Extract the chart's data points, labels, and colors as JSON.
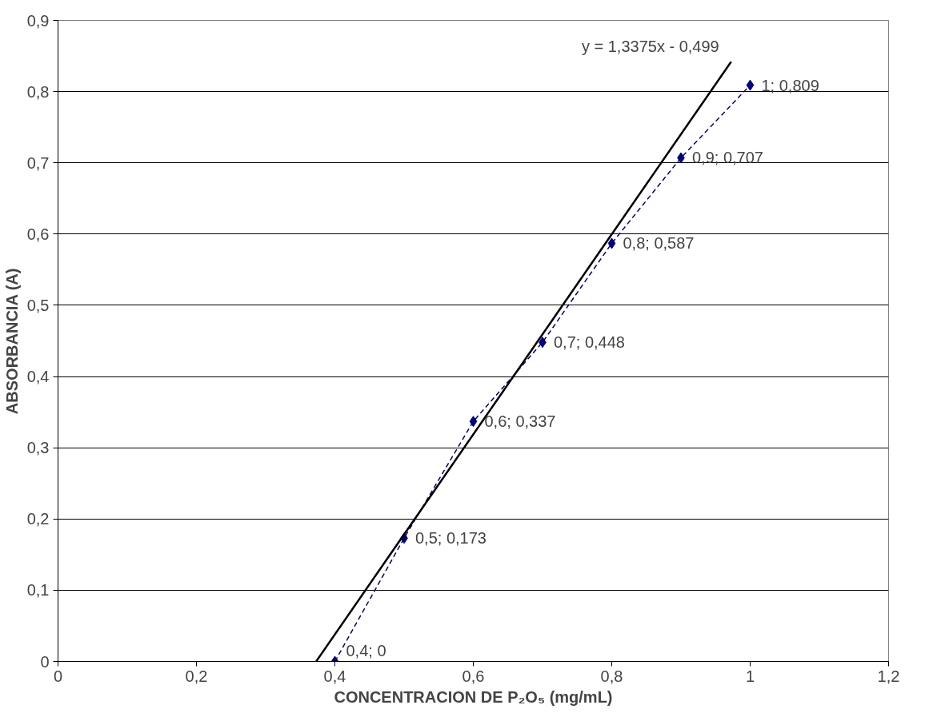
{
  "chart_data": {
    "type": "line",
    "xlabel": "CONCENTRACION DE P₂O₅ (mg/mL)",
    "ylabel": "ABSORBANCIA (A)",
    "xlim": [
      0,
      1.2
    ],
    "ylim": [
      0,
      0.9
    ],
    "xticks": [
      0,
      {
        "value": 0.2,
        "label": "0,2"
      },
      {
        "value": 0.4,
        "label": "0,4"
      },
      {
        "value": 0.6,
        "label": "0,6"
      },
      {
        "value": 0.8,
        "label": "0,8"
      },
      1,
      {
        "value": 1.2,
        "label": "1,2"
      }
    ],
    "yticks": [
      0,
      {
        "value": 0.1,
        "label": "0,1"
      },
      {
        "value": 0.2,
        "label": "0,2"
      },
      {
        "value": 0.3,
        "label": "0,3"
      },
      {
        "value": 0.4,
        "label": "0,4"
      },
      {
        "value": 0.5,
        "label": "0,5"
      },
      {
        "value": 0.6,
        "label": "0,6"
      },
      {
        "value": 0.7,
        "label": "0,7"
      },
      {
        "value": 0.8,
        "label": "0,8"
      },
      {
        "value": 0.9,
        "label": "0,9"
      }
    ],
    "grid": "y",
    "series": [
      {
        "color": "#000080",
        "marker": "diamond",
        "line_style": "dashed",
        "x": [
          0.4,
          0.5,
          0.6,
          0.7,
          0.8,
          0.9,
          1
        ],
        "values": [
          0,
          0.173,
          0.337,
          0.448,
          0.587,
          0.707,
          0.809
        ],
        "value_labels": [
          "0,4; 0",
          "0,5; 0,173",
          "0,6; 0,337",
          "0,7; 0,448",
          "0,8; 0,587",
          "0,9; 0,707",
          "1; 0,809"
        ]
      },
      {
        "color": "#000000",
        "marker": "none",
        "line_style": "solid",
        "x": [
          0.373,
          0.9725
        ],
        "values": [
          0,
          0.842
        ]
      }
    ],
    "annotations": [
      {
        "text": "y = 1,3375x - 0,499",
        "x": 0.9725,
        "y": 0.842
      }
    ]
  }
}
